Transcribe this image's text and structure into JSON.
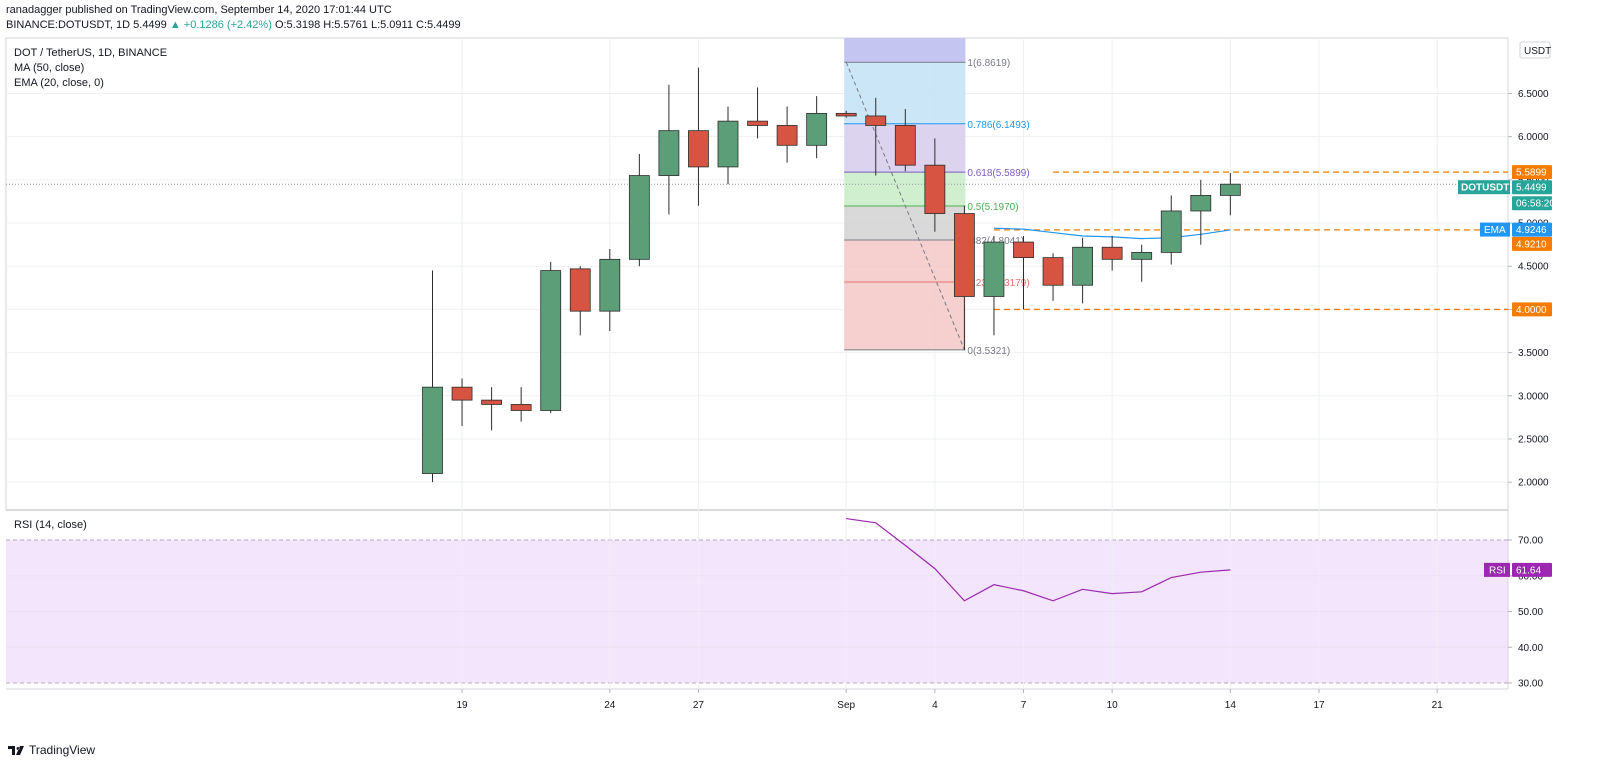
{
  "header": {
    "line1": "ranadagger published on TradingView.com, September 14, 2020 17:01:44 UTC",
    "pair": "BINANCE:DOTUSDT, 1D",
    "last": "5.4499",
    "change": "▲ +0.1286 (+2.42%)",
    "ohlc": "O:5.3198 H:5.5761 L:5.0911 C:5.4499"
  },
  "legend": {
    "symbol": "DOT / TetherUS, 1D, BINANCE",
    "ma": "MA (50, close)",
    "ema": "EMA (20, close, 0)",
    "rsi": "RSI (14, close)"
  },
  "footer": {
    "brand": "TradingView"
  },
  "colors": {
    "up": "#5b9e77",
    "down": "#d75442",
    "candle_border": "#2d2d2d",
    "ema": "#2196f3",
    "rsi": "#9c27b0",
    "rsi_band": "#f3e5fb",
    "orange": "#f57c00",
    "price_line": "#26a69a"
  },
  "chart_data": {
    "type": "candlestick",
    "currency": "USDT",
    "price_axis": {
      "ylim": [
        1.8,
        6.95
      ],
      "ticks": [
        "6.5000",
        "6.0000",
        "5.5000",
        "5.0000",
        "4.5000",
        "4.0000",
        "3.5000",
        "3.0000",
        "2.5000",
        "2.0000"
      ]
    },
    "x_ticks": [
      {
        "label": "19",
        "day": 19
      },
      {
        "label": "24",
        "day": 24
      },
      {
        "label": "27",
        "day": 27
      },
      {
        "label": "Sep",
        "day": 32
      },
      {
        "label": "4",
        "day": 35
      },
      {
        "label": "7",
        "day": 38
      },
      {
        "label": "10",
        "day": 41
      },
      {
        "label": "14",
        "day": 45
      },
      {
        "label": "17",
        "day": 48
      },
      {
        "label": "21",
        "day": 52
      }
    ],
    "candles": [
      {
        "d": 18,
        "o": 2.1,
        "h": 4.45,
        "l": 2.0,
        "c": 3.1
      },
      {
        "d": 19,
        "o": 3.1,
        "h": 3.2,
        "l": 2.65,
        "c": 2.95
      },
      {
        "d": 20,
        "o": 2.95,
        "h": 3.1,
        "l": 2.6,
        "c": 2.9
      },
      {
        "d": 21,
        "o": 2.9,
        "h": 3.1,
        "l": 2.7,
        "c": 2.83
      },
      {
        "d": 22,
        "o": 2.83,
        "h": 4.55,
        "l": 2.8,
        "c": 4.45
      },
      {
        "d": 23,
        "o": 4.47,
        "h": 4.5,
        "l": 3.7,
        "c": 3.98
      },
      {
        "d": 24,
        "o": 3.98,
        "h": 4.7,
        "l": 3.75,
        "c": 4.58
      },
      {
        "d": 25,
        "o": 4.58,
        "h": 5.8,
        "l": 4.5,
        "c": 5.55
      },
      {
        "d": 26,
        "o": 5.55,
        "h": 6.6,
        "l": 5.1,
        "c": 6.07
      },
      {
        "d": 27,
        "o": 6.07,
        "h": 6.8,
        "l": 5.2,
        "c": 5.65
      },
      {
        "d": 28,
        "o": 5.65,
        "h": 6.35,
        "l": 5.45,
        "c": 6.18
      },
      {
        "d": 29,
        "o": 6.18,
        "h": 6.57,
        "l": 5.98,
        "c": 6.13
      },
      {
        "d": 30,
        "o": 6.13,
        "h": 6.35,
        "l": 5.7,
        "c": 5.9
      },
      {
        "d": 31,
        "o": 5.9,
        "h": 6.47,
        "l": 5.75,
        "c": 6.27
      },
      {
        "d": 32,
        "o": 6.27,
        "h": 6.3,
        "l": 6.22,
        "c": 6.24
      },
      {
        "d": 33,
        "o": 6.24,
        "h": 6.45,
        "l": 5.55,
        "c": 6.13
      },
      {
        "d": 34,
        "o": 6.13,
        "h": 6.32,
        "l": 5.6,
        "c": 5.67
      },
      {
        "d": 35,
        "o": 5.67,
        "h": 5.98,
        "l": 4.9,
        "c": 5.11
      },
      {
        "d": 36,
        "o": 5.11,
        "h": 5.2,
        "l": 3.53,
        "c": 4.15
      },
      {
        "d": 37,
        "o": 4.15,
        "h": 4.85,
        "l": 3.7,
        "c": 4.78
      },
      {
        "d": 38,
        "o": 4.78,
        "h": 4.85,
        "l": 4.0,
        "c": 4.6
      },
      {
        "d": 39,
        "o": 4.6,
        "h": 4.65,
        "l": 4.1,
        "c": 4.28
      },
      {
        "d": 40,
        "o": 4.28,
        "h": 4.83,
        "l": 4.07,
        "c": 4.72
      },
      {
        "d": 41,
        "o": 4.72,
        "h": 4.85,
        "l": 4.45,
        "c": 4.58
      },
      {
        "d": 42,
        "o": 4.58,
        "h": 4.75,
        "l": 4.32,
        "c": 4.66
      },
      {
        "d": 43,
        "o": 4.66,
        "h": 5.32,
        "l": 4.52,
        "c": 5.14
      },
      {
        "d": 44,
        "o": 5.14,
        "h": 5.5,
        "l": 4.75,
        "c": 5.32
      },
      {
        "d": 45,
        "o": 5.32,
        "h": 5.58,
        "l": 5.09,
        "c": 5.45
      }
    ],
    "ema_line": [
      {
        "d": 37,
        "v": 4.94
      },
      {
        "d": 38,
        "v": 4.93
      },
      {
        "d": 39,
        "v": 4.89
      },
      {
        "d": 40,
        "v": 4.85
      },
      {
        "d": 41,
        "v": 4.84
      },
      {
        "d": 42,
        "v": 4.82
      },
      {
        "d": 43,
        "v": 4.83
      },
      {
        "d": 44,
        "v": 4.87
      },
      {
        "d": 45,
        "v": 4.92
      }
    ],
    "fib": {
      "levels": [
        {
          "label": "1(6.8619)",
          "price": 6.8619,
          "color": "#787b86",
          "fill": "#e1e1e1"
        },
        {
          "label": "0.786(6.1493)",
          "price": 6.1493,
          "color": "#2196f3",
          "fill": "#c2e3f6"
        },
        {
          "label": "0.618(5.5899)",
          "price": 5.5899,
          "color": "#7e57c2",
          "fill": "#d6cdec"
        },
        {
          "label": "0.5(5.1970)",
          "price": 5.197,
          "color": "#4caf50",
          "fill": "#c8ecc5"
        },
        {
          "label": ".382(4.8041)",
          "price": 4.8041,
          "color": "#787b86",
          "fill": "#d2d2d2"
        },
        {
          "label": "0.236(4.3179)",
          "price": 4.3179,
          "color": "#e57373",
          "fill": "#f5c7c7"
        },
        {
          "label": "0(3.5321)",
          "price": 3.5321,
          "color": "#787b86",
          "fill": "#f5c7c7"
        }
      ],
      "top_band_fill": "#c5c5f2",
      "start": {
        "d": 32,
        "price": 6.8619
      },
      "end": {
        "d": 36,
        "price": 3.5321
      }
    },
    "hlines": [
      {
        "price": 5.5899,
        "label": "5.5899",
        "from_day": 39,
        "color": "#f57c00"
      },
      {
        "price": 4.921,
        "label": "4.9210",
        "from_day": 37,
        "color": "#f57c00"
      },
      {
        "price": 4.0,
        "label": "4.0000",
        "from_day": 37,
        "color": "#f57c00"
      }
    ],
    "price_tags": {
      "last": {
        "price": 5.4499,
        "name": "DOTUSDT",
        "value": "5.4499",
        "timer": "06:58:20"
      },
      "ema": {
        "price": 4.9246,
        "name": "EMA",
        "value": "4.9246"
      },
      "rsi": {
        "value_num": 61.64,
        "name": "RSI",
        "value": "61.64"
      }
    },
    "rsi": {
      "ylim": [
        27,
        79
      ],
      "ticks": [
        "70.00",
        "60.00",
        "50.00",
        "40.00",
        "30.00"
      ],
      "band": [
        30,
        70
      ],
      "points": [
        {
          "d": 32,
          "v": 76
        },
        {
          "d": 33,
          "v": 74.8
        },
        {
          "d": 34,
          "v": 68.5
        },
        {
          "d": 35,
          "v": 62
        },
        {
          "d": 36,
          "v": 53
        },
        {
          "d": 37,
          "v": 57.5
        },
        {
          "d": 38,
          "v": 55.8
        },
        {
          "d": 39,
          "v": 53
        },
        {
          "d": 40,
          "v": 56.2
        },
        {
          "d": 41,
          "v": 55
        },
        {
          "d": 42,
          "v": 55.5
        },
        {
          "d": 43,
          "v": 59.5
        },
        {
          "d": 44,
          "v": 61
        },
        {
          "d": 45,
          "v": 61.64
        }
      ]
    }
  }
}
